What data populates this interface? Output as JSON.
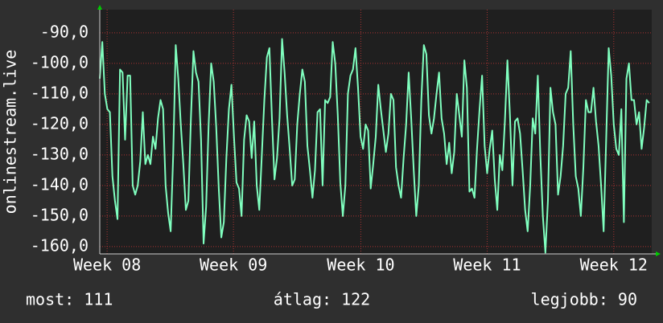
{
  "chart_data": {
    "type": "line",
    "y_label": "onlinestream.live",
    "series": [
      {
        "color": "#80ffbf",
        "values": [
          -105,
          -93,
          -110,
          -115,
          -116,
          -137,
          -145,
          -151,
          -102,
          -103,
          -125,
          -104,
          -104,
          -140,
          -143,
          -140,
          -132,
          -116,
          -133,
          -130,
          -133,
          -124,
          -128,
          -118,
          -112,
          -115,
          -140,
          -149,
          -155,
          -130,
          -94,
          -105,
          -120,
          -133,
          -148,
          -145,
          -118,
          -96,
          -103,
          -106,
          -125,
          -159,
          -147,
          -120,
          -100,
          -106,
          -121,
          -141,
          -157,
          -152,
          -131,
          -115,
          -107,
          -124,
          -139,
          -141,
          -150,
          -125,
          -117,
          -119,
          -131,
          -119,
          -140,
          -148,
          -130,
          -112,
          -98,
          -95,
          -118,
          -138,
          -131,
          -118,
          -92,
          -103,
          -117,
          -128,
          -140,
          -138,
          -120,
          -110,
          -102,
          -106,
          -127,
          -135,
          -144,
          -135,
          -116,
          -115,
          -140,
          -112,
          -113,
          -111,
          -93,
          -100,
          -117,
          -139,
          -150,
          -140,
          -110,
          -104,
          -102,
          -95,
          -108,
          -124,
          -128,
          -120,
          -122,
          -141,
          -133,
          -124,
          -107,
          -115,
          -122,
          -129,
          -123,
          -110,
          -112,
          -134,
          -140,
          -144,
          -131,
          -120,
          -103,
          -118,
          -135,
          -150,
          -140,
          -112,
          -94,
          -97,
          -117,
          -123,
          -118,
          -110,
          -103,
          -118,
          -123,
          -133,
          -126,
          -136,
          -129,
          -110,
          -117,
          -124,
          -99,
          -108,
          -142,
          -141,
          -144,
          -128,
          -115,
          -104,
          -127,
          -136,
          -128,
          -122,
          -138,
          -148,
          -130,
          -135,
          -119,
          -99,
          -117,
          -140,
          -119,
          -118,
          -123,
          -135,
          -148,
          -155,
          -140,
          -118,
          -123,
          -104,
          -130,
          -150,
          -162,
          -145,
          -108,
          -116,
          -120,
          -143,
          -137,
          -127,
          -110,
          -108,
          -96,
          -120,
          -137,
          -141,
          -150,
          -134,
          -112,
          -116,
          -116,
          -108,
          -119,
          -127,
          -140,
          -155,
          -125,
          -95,
          -104,
          -120,
          -128,
          -130,
          -115,
          -152,
          -105,
          -100,
          -112,
          -112,
          -120,
          -116,
          -128,
          -121,
          -112,
          -113
        ]
      }
    ],
    "xlim": [
      0,
      218
    ],
    "xticks": [
      {
        "value": 2.9,
        "label": "Week 08"
      },
      {
        "value": 52.8,
        "label": "Week 09"
      },
      {
        "value": 103.1,
        "label": "Week 10"
      },
      {
        "value": 153,
        "label": "Week 11"
      },
      {
        "value": 203,
        "label": "Week 12"
      }
    ],
    "ylim": [
      -162.4,
      -82.4
    ],
    "yticks": [
      {
        "value": -90,
        "label": "-90,0"
      },
      {
        "value": -100,
        "label": "-100,0"
      },
      {
        "value": -110,
        "label": "-110,0"
      },
      {
        "value": -120,
        "label": "-120,0"
      },
      {
        "value": -130,
        "label": "-130,0"
      },
      {
        "value": -140,
        "label": "-140,0"
      },
      {
        "value": -150,
        "label": "-150,0"
      },
      {
        "value": -160,
        "label": "-160,0"
      }
    ],
    "grid": true,
    "footer": [
      "most: 111",
      "átlag: 122",
      "legjobb: 90"
    ]
  }
}
